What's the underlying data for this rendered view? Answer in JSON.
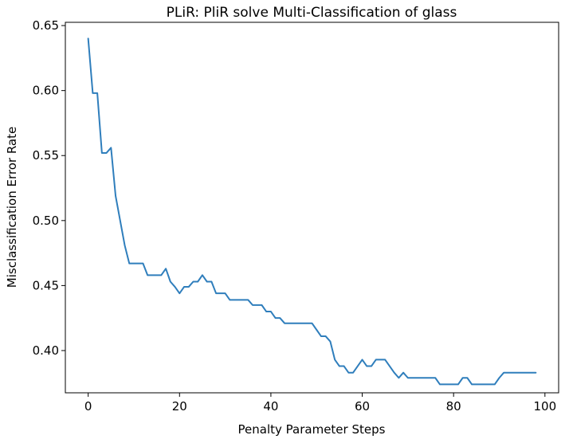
{
  "chart_data": {
    "type": "line",
    "title": "PLiR: PliR solve Multi-Classification of glass",
    "xlabel": "Penalty Parameter Steps",
    "ylabel": "Misclassification Error Rate",
    "xlim": [
      -5,
      103
    ],
    "ylim": [
      0.3675,
      0.6525
    ],
    "xticks": [
      0,
      20,
      40,
      60,
      80,
      100
    ],
    "xtick_labels": [
      "0",
      "20",
      "40",
      "60",
      "80",
      "100"
    ],
    "yticks": [
      0.4,
      0.45,
      0.5,
      0.55,
      0.6,
      0.65
    ],
    "ytick_labels": [
      "0.40",
      "0.45",
      "0.50",
      "0.55",
      "0.60",
      "0.65"
    ],
    "grid": false,
    "line_color": "#2f7ebc",
    "series": [
      {
        "x": [
          0,
          1,
          2,
          3,
          4,
          5,
          6,
          7,
          8,
          9,
          10,
          11,
          12,
          13,
          14,
          15,
          16,
          17,
          18,
          19,
          20,
          21,
          22,
          23,
          24,
          25,
          26,
          27,
          28,
          29,
          30,
          31,
          32,
          33,
          34,
          35,
          36,
          37,
          38,
          39,
          40,
          41,
          42,
          43,
          44,
          45,
          46,
          47,
          48,
          49,
          50,
          51,
          52,
          53,
          54,
          55,
          56,
          57,
          58,
          59,
          60,
          61,
          62,
          63,
          64,
          65,
          66,
          67,
          68,
          69,
          70,
          71,
          72,
          73,
          74,
          75,
          76,
          77,
          78,
          79,
          80,
          81,
          82,
          83,
          84,
          85,
          86,
          87,
          88,
          89,
          90,
          91,
          92,
          93,
          94,
          95,
          96,
          97,
          98
        ],
        "y": [
          0.64,
          0.598,
          0.598,
          0.552,
          0.552,
          0.556,
          0.519,
          0.5,
          0.481,
          0.467,
          0.467,
          0.467,
          0.467,
          0.458,
          0.458,
          0.458,
          0.458,
          0.463,
          0.453,
          0.449,
          0.444,
          0.449,
          0.449,
          0.453,
          0.453,
          0.458,
          0.453,
          0.453,
          0.444,
          0.444,
          0.444,
          0.439,
          0.439,
          0.439,
          0.439,
          0.439,
          0.435,
          0.435,
          0.435,
          0.43,
          0.43,
          0.425,
          0.425,
          0.421,
          0.421,
          0.421,
          0.421,
          0.421,
          0.421,
          0.421,
          0.416,
          0.411,
          0.411,
          0.407,
          0.393,
          0.388,
          0.388,
          0.383,
          0.383,
          0.388,
          0.393,
          0.388,
          0.388,
          0.393,
          0.393,
          0.393,
          0.388,
          0.383,
          0.379,
          0.383,
          0.379,
          0.379,
          0.379,
          0.379,
          0.379,
          0.379,
          0.379,
          0.374,
          0.374,
          0.374,
          0.374,
          0.374,
          0.379,
          0.379,
          0.374,
          0.374,
          0.374,
          0.374,
          0.374,
          0.374,
          0.379,
          0.383,
          0.383,
          0.383,
          0.383,
          0.383,
          0.383,
          0.383,
          0.383
        ]
      }
    ]
  }
}
